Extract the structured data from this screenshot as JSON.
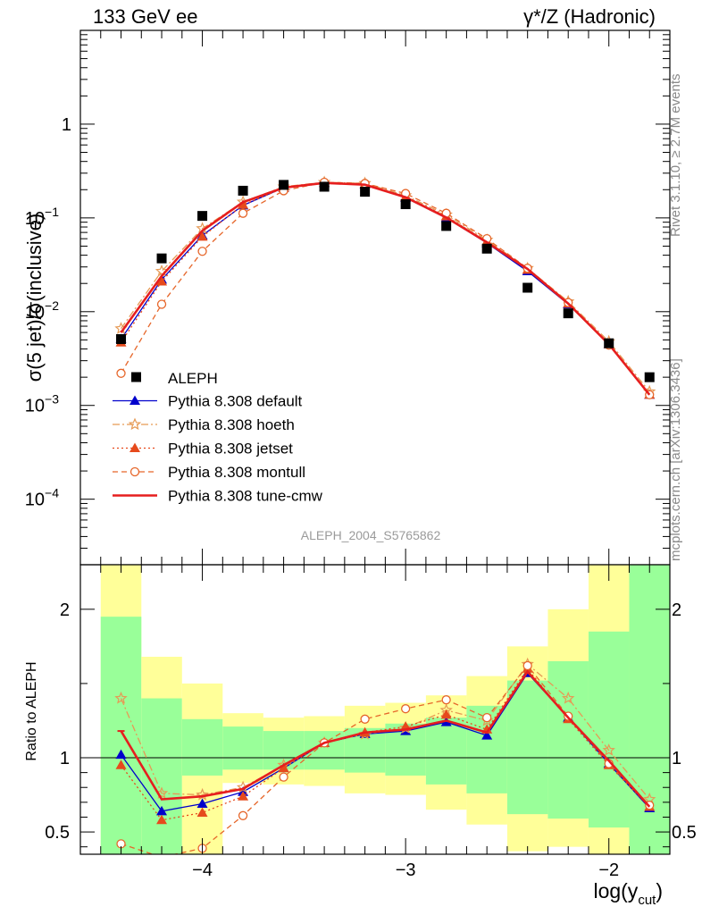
{
  "header": {
    "left": "133 GeV ee",
    "right": "γ*/Z (Hadronic)"
  },
  "side_labels": {
    "rivet": "Rivet 3.1.10, ≥ 2.7M events",
    "mcplots": "mcplots.cern.ch [arXiv:1306.3436]"
  },
  "watermark": "ALEPH_2004_S5765862",
  "chart_data": [
    {
      "type": "line",
      "title": "",
      "ylabel": "σ(5 jet)/σ(inclusive)",
      "yscale": "log",
      "xlim": [
        -4.6,
        -1.7
      ],
      "ylim": [
        2e-05,
        10
      ],
      "yticks": [
        {
          "value": 1,
          "label": "1"
        },
        {
          "value": 0.1,
          "label": "10",
          "exp": "−1"
        },
        {
          "value": 0.01,
          "label": "10",
          "exp": "−2"
        },
        {
          "value": 0.001,
          "label": "10",
          "exp": "−3"
        },
        {
          "value": 0.0001,
          "label": "10",
          "exp": "−4"
        }
      ],
      "x": [
        -4.4,
        -4.2,
        -4.0,
        -3.8,
        -3.6,
        -3.4,
        -3.2,
        -3.0,
        -2.8,
        -2.6,
        -2.4,
        -2.2,
        -2.0,
        -1.8
      ],
      "data": {
        "name": "ALEPH",
        "values": [
          0.0051,
          0.037,
          0.105,
          0.195,
          0.225,
          0.215,
          0.19,
          0.14,
          0.082,
          0.047,
          0.018,
          0.0096,
          0.0046,
          0.002
        ]
      },
      "series": [
        {
          "name": "Pythia 8.308 default",
          "color": "#0000cc",
          "dash": "",
          "marker": "triangle",
          "values": [
            0.0051,
            0.022,
            0.065,
            0.136,
            0.21,
            0.236,
            0.228,
            0.164,
            0.1,
            0.054,
            0.027,
            0.012,
            0.0045,
            0.0013
          ]
        },
        {
          "name": "Pythia 8.308 hoeth",
          "color": "#e69a55",
          "dash": "8,3,2,3",
          "marker": "star",
          "values": [
            0.0066,
            0.027,
            0.077,
            0.148,
            0.215,
            0.24,
            0.234,
            0.173,
            0.108,
            0.058,
            0.029,
            0.0128,
            0.0048,
            0.0014
          ]
        },
        {
          "name": "Pythia 8.308 jetset",
          "color": "#e64a1c",
          "dash": "2,3",
          "marker": "triangle",
          "values": [
            0.0047,
            0.021,
            0.063,
            0.138,
            0.208,
            0.237,
            0.23,
            0.168,
            0.104,
            0.056,
            0.028,
            0.0122,
            0.0045,
            0.0013
          ]
        },
        {
          "name": "Pythia 8.308 montull",
          "color": "#e6662a",
          "dash": "6,4",
          "marker": "circle",
          "values": [
            0.0022,
            0.012,
            0.044,
            0.112,
            0.195,
            0.24,
            0.233,
            0.182,
            0.112,
            0.06,
            0.029,
            0.0125,
            0.0044,
            0.0013
          ]
        },
        {
          "name": "Pythia 8.308 tune-cmw",
          "color": "#e61e1e",
          "dash": "",
          "marker": "none",
          "values": [
            0.006,
            0.024,
            0.073,
            0.147,
            0.21,
            0.236,
            0.226,
            0.166,
            0.101,
            0.055,
            0.0285,
            0.0122,
            0.0045,
            0.0013
          ]
        }
      ]
    },
    {
      "type": "line",
      "title": "",
      "ylabel": "Ratio to ALEPH",
      "xlabel": "log(y",
      "xlabel_sub": "cut",
      "xlabel_close": ")",
      "xlim": [
        -4.6,
        -1.7
      ],
      "ylim": [
        0.35,
        2.3
      ],
      "xticks": [
        {
          "value": -4,
          "label": "−4"
        },
        {
          "value": -3,
          "label": "−3"
        },
        {
          "value": -2,
          "label": "−2"
        }
      ],
      "yticks": [
        {
          "value": 2,
          "label": "2"
        },
        {
          "value": 1,
          "label": "1"
        },
        {
          "value": 0.5,
          "label": "0.5"
        }
      ],
      "bands": {
        "bins": [
          [
            -4.5,
            -4.3
          ],
          [
            -4.3,
            -4.1
          ],
          [
            -4.1,
            -3.9
          ],
          [
            -3.9,
            -3.7
          ],
          [
            -3.7,
            -3.5
          ],
          [
            -3.5,
            -3.3
          ],
          [
            -3.3,
            -3.1
          ],
          [
            -3.1,
            -2.9
          ],
          [
            -2.9,
            -2.7
          ],
          [
            -2.7,
            -2.5
          ],
          [
            -2.5,
            -2.3
          ],
          [
            -2.3,
            -2.1
          ],
          [
            -2.1,
            -1.9
          ],
          [
            -1.9,
            -1.7
          ]
        ],
        "yellow_lo": [
          0.3,
          0.3,
          0.3,
          0.83,
          0.82,
          0.81,
          0.76,
          0.75,
          0.65,
          0.55,
          0.37,
          0.4,
          0.3,
          0.3
        ],
        "yellow_hi": [
          2.5,
          1.68,
          1.5,
          1.3,
          1.27,
          1.28,
          1.35,
          1.37,
          1.42,
          1.55,
          1.75,
          2.0,
          2.6,
          2.6
        ],
        "green_lo": [
          0.3,
          0.3,
          0.88,
          0.92,
          0.92,
          0.92,
          0.9,
          0.88,
          0.82,
          0.76,
          0.62,
          0.59,
          0.53,
          0.3
        ],
        "green_hi": [
          1.95,
          1.4,
          1.26,
          1.21,
          1.18,
          1.18,
          1.2,
          1.23,
          1.27,
          1.35,
          1.52,
          1.65,
          1.85,
          2.6
        ]
      },
      "series": [
        {
          "name": "Pythia 8.308 default",
          "color": "#0000cc",
          "dash": "",
          "marker": "triangle",
          "values": [
            1.02,
            0.64,
            0.69,
            0.77,
            0.93,
            1.1,
            1.16,
            1.18,
            1.24,
            1.15,
            1.57,
            1.27,
            0.96,
            0.66
          ]
        },
        {
          "name": "Pythia 8.308 hoeth",
          "color": "#e69a55",
          "dash": "8,3,2,3",
          "marker": "star",
          "values": [
            1.4,
            0.76,
            0.75,
            0.8,
            0.95,
            1.1,
            1.16,
            1.2,
            1.32,
            1.25,
            1.63,
            1.4,
            1.05,
            0.72
          ]
        },
        {
          "name": "Pythia 8.308 jetset",
          "color": "#e64a1c",
          "dash": "2,3",
          "marker": "triangle",
          "values": [
            0.95,
            0.58,
            0.63,
            0.74,
            0.93,
            1.1,
            1.17,
            1.21,
            1.29,
            1.19,
            1.6,
            1.26,
            0.95,
            0.67
          ]
        },
        {
          "name": "Pythia 8.308 montull",
          "color": "#e6662a",
          "dash": "6,4",
          "marker": "circle",
          "values": [
            0.42,
            0.33,
            0.39,
            0.61,
            0.87,
            1.1,
            1.26,
            1.33,
            1.39,
            1.27,
            1.62,
            1.28,
            0.96,
            0.68
          ]
        },
        {
          "name": "Pythia 8.308 tune-cmw",
          "color": "#e61e1e",
          "dash": "",
          "marker": "none",
          "values": [
            1.18,
            0.72,
            0.74,
            0.79,
            0.95,
            1.1,
            1.17,
            1.19,
            1.25,
            1.17,
            1.58,
            1.27,
            0.98,
            0.67
          ]
        }
      ]
    }
  ]
}
